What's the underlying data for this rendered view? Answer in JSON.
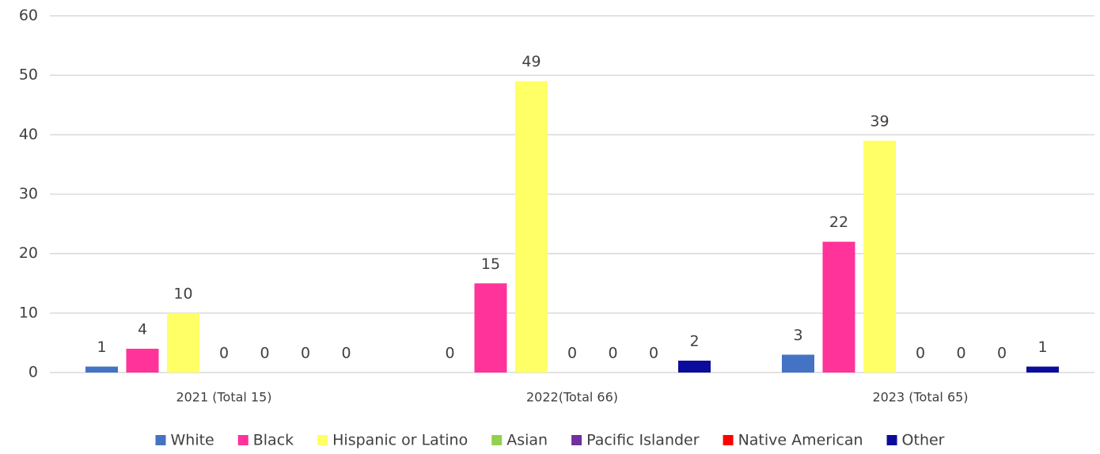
{
  "chart_data": {
    "type": "bar",
    "categories": [
      "2021 (Total 15)",
      "2022(Total 66)",
      "2023 (Total 65)"
    ],
    "series": [
      {
        "name": "White",
        "color": "#4472c4",
        "values": [
          1,
          0,
          3
        ]
      },
      {
        "name": "Black",
        "color": "#ff3399",
        "values": [
          4,
          15,
          22
        ]
      },
      {
        "name": "Hispanic or Latino",
        "color": "#ffff66",
        "values": [
          10,
          49,
          39
        ]
      },
      {
        "name": "Asian",
        "color": "#92d050",
        "values": [
          0,
          0,
          0
        ]
      },
      {
        "name": "Pacific Islander",
        "color": "#7030a0",
        "values": [
          0,
          0,
          0
        ]
      },
      {
        "name": "Native American",
        "color": "#ff0000",
        "values": [
          0,
          0,
          0
        ]
      },
      {
        "name": "Other",
        "color": "#0c0c9c",
        "values": [
          0,
          2,
          1
        ]
      }
    ],
    "ylim": [
      0,
      60
    ],
    "yticks": [
      0,
      10,
      20,
      30,
      40,
      50,
      60
    ],
    "grid": true,
    "legend": "bottom"
  }
}
